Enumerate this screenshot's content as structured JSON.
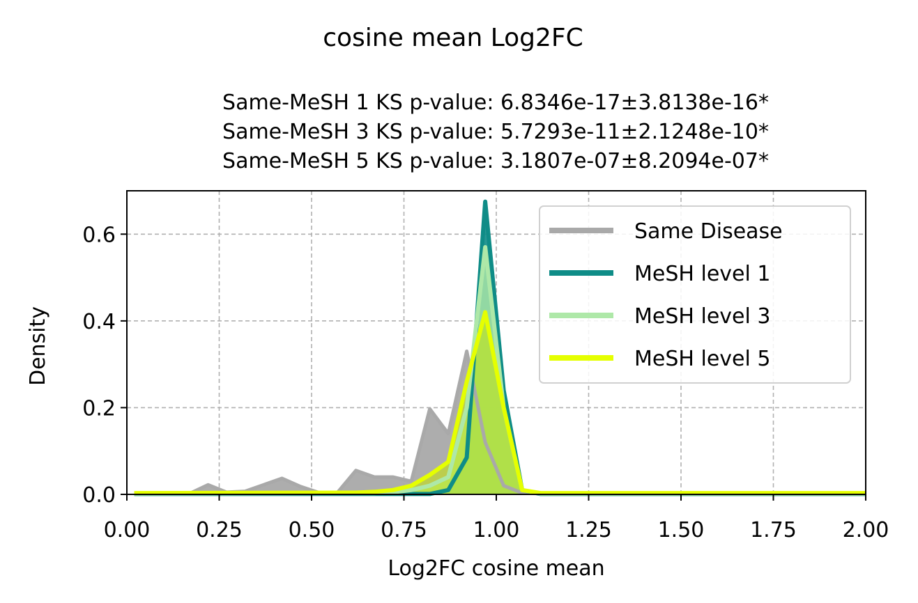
{
  "figure_title": "cosine mean Log2FC",
  "subtitle_lines": [
    "Same-MeSH 1 KS p-value: 6.8346e-17±3.8138e-16*",
    "Same-MeSH 3 KS p-value: 5.7293e-11±2.1248e-10*",
    "Same-MeSH 5 KS p-value: 3.1807e-07±8.2094e-07*"
  ],
  "chart_data": {
    "type": "area",
    "title": "cosine mean Log2FC",
    "xlabel": "Log2FC cosine mean",
    "ylabel": "Density",
    "xlim": [
      0,
      2
    ],
    "ylim": [
      0,
      0.7
    ],
    "xticks": [
      0.0,
      0.25,
      0.5,
      0.75,
      1.0,
      1.25,
      1.5,
      1.75,
      2.0
    ],
    "xtick_labels": [
      "0.00",
      "0.25",
      "0.50",
      "0.75",
      "1.00",
      "1.25",
      "1.50",
      "1.75",
      "2.00"
    ],
    "yticks": [
      0.0,
      0.2,
      0.4,
      0.6
    ],
    "ytick_labels": [
      "0.0",
      "0.2",
      "0.4",
      "0.6"
    ],
    "grid": true,
    "legend_position": "top-right",
    "series": [
      {
        "name": "Same Disease",
        "color": "#a9a9a9",
        "fill": "#a9a9a9",
        "x": [
          0.02,
          0.17,
          0.22,
          0.27,
          0.32,
          0.37,
          0.42,
          0.47,
          0.52,
          0.57,
          0.62,
          0.67,
          0.72,
          0.77,
          0.82,
          0.87,
          0.92,
          0.97,
          1.02,
          1.07,
          1.12,
          2.0
        ],
        "y": [
          0.002,
          0.002,
          0.022,
          0.005,
          0.007,
          0.022,
          0.037,
          0.018,
          0.004,
          0.004,
          0.055,
          0.04,
          0.04,
          0.03,
          0.197,
          0.14,
          0.33,
          0.12,
          0.02,
          0.003,
          0.002,
          0.002
        ]
      },
      {
        "name": "MeSH level 1",
        "color": "#0f8c87",
        "fill": "#0f8c87",
        "x": [
          0.02,
          0.82,
          0.87,
          0.92,
          0.97,
          1.02,
          1.07,
          1.12,
          2.0
        ],
        "y": [
          0.001,
          0.001,
          0.01,
          0.085,
          0.675,
          0.24,
          0.01,
          0.001,
          0.001
        ]
      },
      {
        "name": "MeSH level 3",
        "color": "#aee8a8",
        "fill": "#aee8a8",
        "x": [
          0.02,
          0.67,
          0.72,
          0.77,
          0.82,
          0.87,
          0.92,
          0.97,
          1.02,
          1.07,
          1.12,
          2.0
        ],
        "y": [
          0.002,
          0.003,
          0.005,
          0.01,
          0.02,
          0.04,
          0.2,
          0.57,
          0.2,
          0.01,
          0.002,
          0.002
        ]
      },
      {
        "name": "MeSH level 5",
        "color": "#e5ff00",
        "fill": "#c8e800",
        "x": [
          0.02,
          0.62,
          0.67,
          0.72,
          0.77,
          0.82,
          0.87,
          0.92,
          0.97,
          1.02,
          1.07,
          1.12,
          2.0
        ],
        "y": [
          0.003,
          0.004,
          0.006,
          0.01,
          0.02,
          0.045,
          0.075,
          0.26,
          0.42,
          0.2,
          0.01,
          0.003,
          0.003
        ]
      }
    ]
  }
}
